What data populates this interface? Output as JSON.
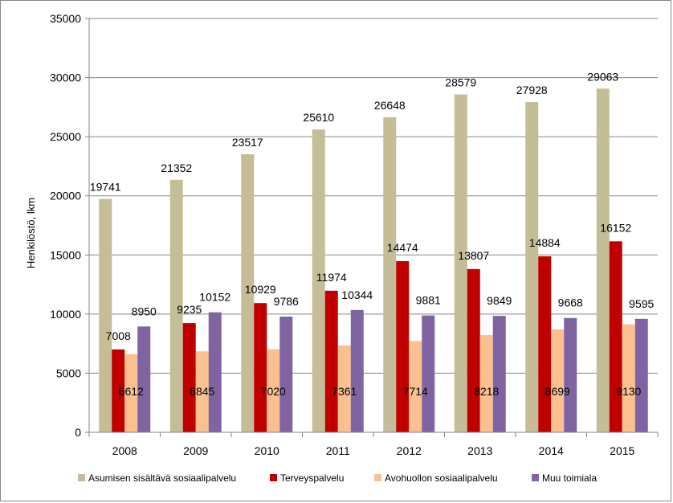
{
  "chart_data": {
    "type": "bar",
    "categories": [
      "2008",
      "2009",
      "2010",
      "2011",
      "2012",
      "2013",
      "2014",
      "2015"
    ],
    "series": [
      {
        "name": "Asumisen sisältävä sosiaalipalvelu",
        "color": "#C4BD97",
        "values": [
          19741,
          21352,
          23517,
          25610,
          26648,
          28579,
          27928,
          29063
        ]
      },
      {
        "name": "Terveyspalvelu",
        "color": "#C00000",
        "values": [
          7008,
          9235,
          10929,
          11974,
          14474,
          13807,
          14884,
          16152
        ]
      },
      {
        "name": "Avohuollon sosiaalipalvelu",
        "color": "#FAC090",
        "values": [
          6612,
          6845,
          7020,
          7361,
          7714,
          8218,
          8699,
          9130
        ]
      },
      {
        "name": "Muu toimiala",
        "color": "#8064A2",
        "values": [
          8950,
          10152,
          9786,
          10344,
          9881,
          9849,
          9668,
          9595
        ]
      }
    ],
    "ylabel": "Henkilöstö, lkm",
    "xlabel": "",
    "title": "",
    "ylim": [
      0,
      35000
    ],
    "yticks": [
      0,
      5000,
      10000,
      15000,
      20000,
      25000,
      30000,
      35000
    ],
    "grid": true,
    "legend": "bottom"
  }
}
